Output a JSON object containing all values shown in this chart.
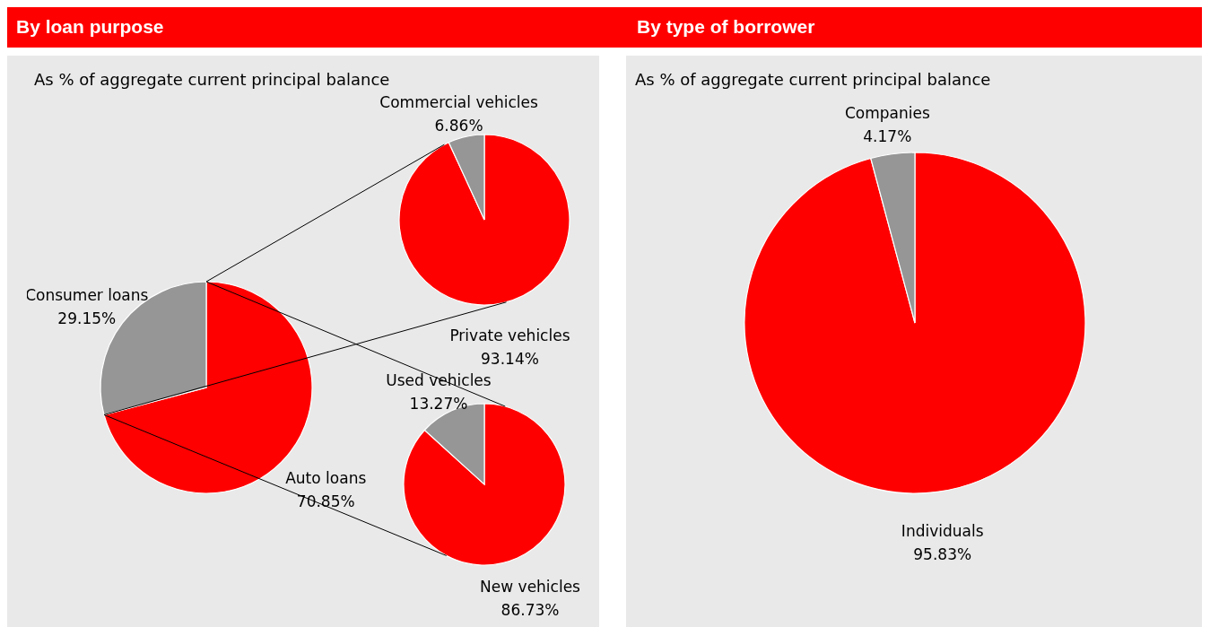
{
  "chart_data": [
    {
      "type": "pie",
      "title": "By loan purpose",
      "subtitle": "As % of aggregate current principal balance",
      "categories": [
        "Auto loans",
        "Consumer loans"
      ],
      "values": [
        70.85,
        29.15
      ],
      "colors": [
        "#ff0000",
        "#969696"
      ],
      "value_labels": [
        "70.85%",
        "29.15%"
      ]
    },
    {
      "type": "pie",
      "categories": [
        "Private vehicles",
        "Commercial vehicles"
      ],
      "values": [
        93.14,
        6.86
      ],
      "colors": [
        "#ff0000",
        "#969696"
      ],
      "value_labels": [
        "93.14%",
        "6.86%"
      ]
    },
    {
      "type": "pie",
      "categories": [
        "New vehicles",
        "Used vehicles"
      ],
      "values": [
        86.73,
        13.27
      ],
      "colors": [
        "#ff0000",
        "#969696"
      ],
      "value_labels": [
        "86.73%",
        "13.27%"
      ]
    },
    {
      "type": "pie",
      "title": "By type of borrower",
      "subtitle": "As % of aggregate current principal balance",
      "categories": [
        "Individuals",
        "Companies"
      ],
      "values": [
        95.83,
        4.17
      ],
      "colors": [
        "#ff0000",
        "#969696"
      ],
      "value_labels": [
        "95.83%",
        "4.17%"
      ]
    }
  ]
}
